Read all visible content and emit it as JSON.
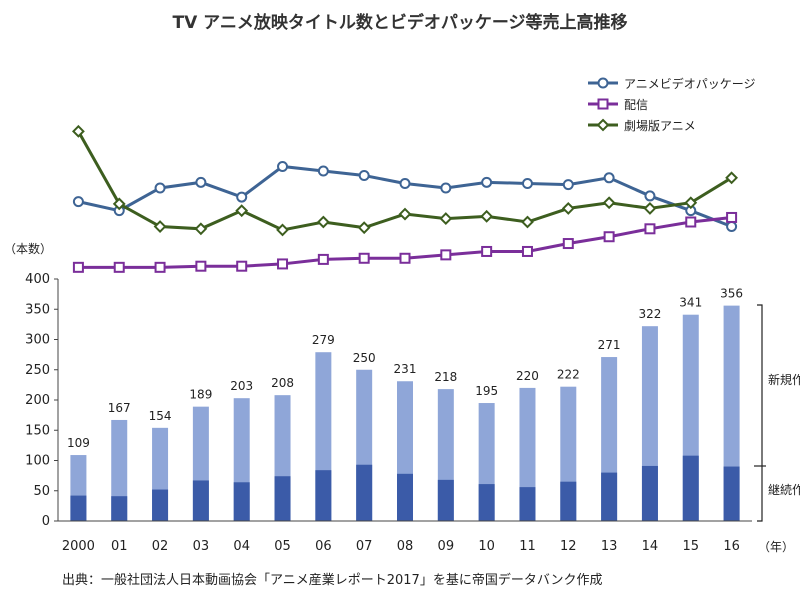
{
  "title": "TV アニメ放映タイトル数とビデオパッケージ等売上高推移",
  "source": "出典：一般社団法人日本動画協会「アニメ産業レポート2017」を基に帝国データバンク作成",
  "yunit": "（本数）",
  "xunit": "（年）",
  "colors": {
    "bar_new": "#8fa6d8",
    "bar_continuing": "#3b5ba8",
    "video": "#3e6494",
    "haishin": "#7a2e9a",
    "gekijo": "#3d5e1f"
  },
  "annotations": {
    "new": "新規作",
    "continuing": "継続作品"
  },
  "chart_data": {
    "type": "bar",
    "title": "TV アニメ放映タイトル数とビデオパッケージ等売上高推移",
    "ylabel": "（本数）",
    "xlabel": "（年）",
    "ylim": [
      0,
      400
    ],
    "yticks": [
      "0",
      "50",
      "100",
      "150",
      "200",
      "250",
      "300",
      "350",
      "400"
    ],
    "categories": [
      "2000",
      "01",
      "02",
      "03",
      "04",
      "05",
      "06",
      "07",
      "08",
      "09",
      "10",
      "11",
      "12",
      "13",
      "14",
      "15",
      "16"
    ],
    "totals": [
      109,
      167,
      154,
      189,
      203,
      208,
      279,
      250,
      231,
      218,
      195,
      220,
      222,
      271,
      322,
      341,
      356
    ],
    "totals_text": [
      "109",
      "167",
      "154",
      "189",
      "203",
      "208",
      "279",
      "250",
      "231",
      "218",
      "195",
      "220",
      "222",
      "271",
      "322",
      "341",
      "356"
    ],
    "continuing": [
      42,
      41,
      52,
      67,
      64,
      74,
      84,
      93,
      78,
      68,
      61,
      56,
      65,
      80,
      91,
      108,
      90
    ],
    "lines_note": "line series are relative trends plotted above the bar area; values approximate",
    "lines": [
      {
        "name": "アニメビデオパッケージ",
        "marker": "circle",
        "values": [
          78,
          70,
          90,
          95,
          82,
          109,
          105,
          101,
          94,
          90,
          95,
          94,
          93,
          99,
          83,
          70,
          56
        ]
      },
      {
        "name": "配信",
        "marker": "square",
        "values": [
          20,
          20,
          20,
          21,
          21,
          23,
          27,
          28,
          28,
          31,
          34,
          34,
          41,
          47,
          54,
          60,
          64
        ]
      },
      {
        "name": "劇場版アニメ",
        "marker": "diamond",
        "values": [
          140,
          76,
          56,
          54,
          70,
          53,
          60,
          55,
          67,
          63,
          65,
          60,
          72,
          77,
          72,
          77,
          99
        ]
      }
    ]
  }
}
